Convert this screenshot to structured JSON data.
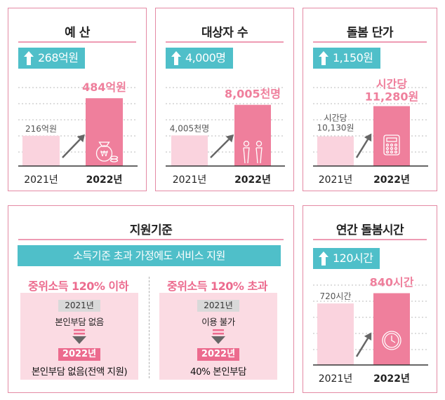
{
  "chart_data": [
    {
      "type": "bar",
      "title": "예 산",
      "change_badge": "268억원",
      "categories": [
        "2021년",
        "2022년"
      ],
      "values": [
        216,
        484
      ],
      "value_labels": [
        "216억원",
        "484억원"
      ],
      "unit": "억원",
      "ylim": [
        0,
        600
      ],
      "icon": "money-bag-icon"
    },
    {
      "type": "bar",
      "title": "대상자 수",
      "change_badge": "4,000명",
      "categories": [
        "2021년",
        "2022년"
      ],
      "values": [
        4005,
        8005
      ],
      "value_labels": [
        "4,005천명",
        "8,005천명"
      ],
      "unit": "천명",
      "ylim": [
        0,
        11000
      ],
      "icon": "family-icon"
    },
    {
      "type": "bar",
      "title": "돌봄 단가",
      "change_badge": "1,150원",
      "categories": [
        "2021년",
        "2022년"
      ],
      "values": [
        10130,
        11280
      ],
      "value_labels": [
        "시간당\n10,130원",
        "시간당\n11,280원"
      ],
      "unit": "원",
      "ylim": [
        9000,
        12200
      ],
      "icon": "calculator-icon"
    },
    {
      "type": "bar",
      "title": "연간 돌봄시간",
      "change_badge": "120시간",
      "categories": [
        "2021년",
        "2022년"
      ],
      "values": [
        720,
        840
      ],
      "value_labels": [
        "720시간",
        "840시간"
      ],
      "unit": "시간",
      "ylim": [
        0,
        1000
      ],
      "icon": "clock-icon"
    }
  ],
  "colors": {
    "bar_prev": "#fad3de",
    "bar_curr": "#ef7f9c",
    "accent_text": "#ec6b8e",
    "badge": "#4fbfc9",
    "border": "#e48aa4",
    "grid": "#bbbbbb",
    "arrow": "#666666"
  },
  "support": {
    "title": "지원기준",
    "headline": "소득기준 초과 가정에도 서비스 지원",
    "columns": [
      {
        "heading": "중위소득 120% 이하",
        "before_year": "2021년",
        "before_text": "본인부담 없음",
        "after_year": "2022년",
        "after_text": "본인부담 없음(전액 지원)"
      },
      {
        "heading": "중위소득 120% 초과",
        "before_year": "2021년",
        "before_text": "이용 불가",
        "after_year": "2022년",
        "after_text": "40% 본인부담"
      }
    ]
  }
}
